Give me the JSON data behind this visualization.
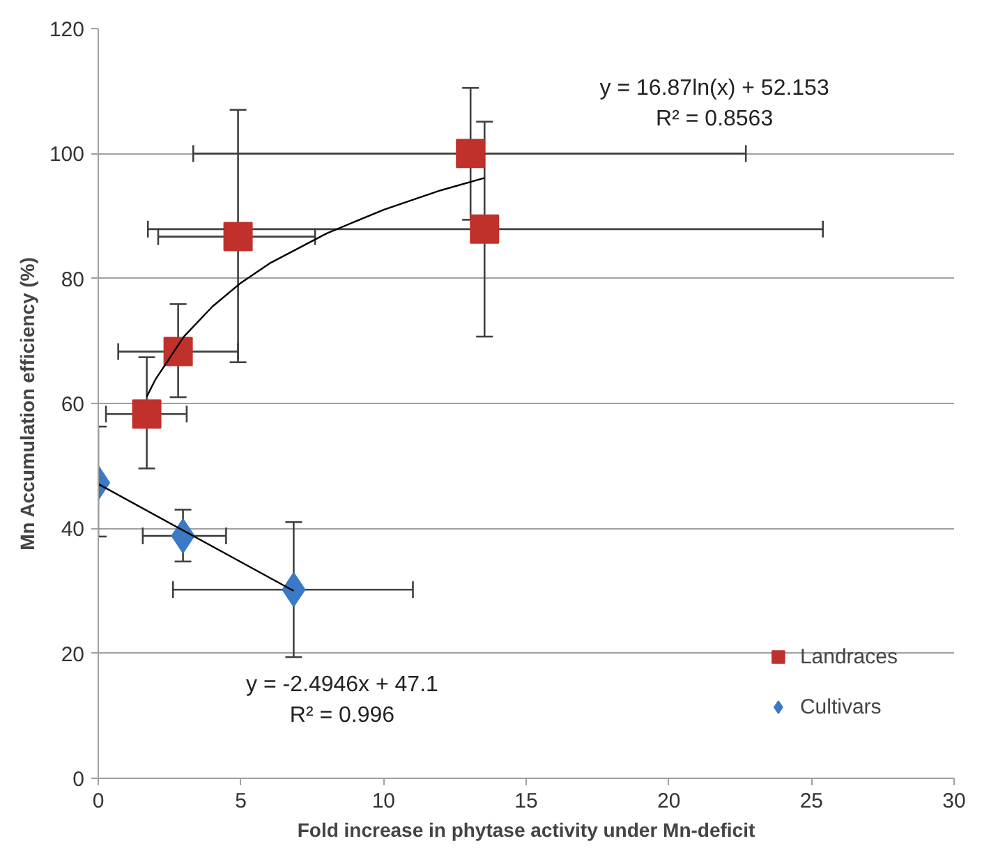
{
  "chart_data": {
    "type": "scatter",
    "xlabel": "Fold increase in phytase activity under Mn-deficit",
    "ylabel": "Mn Accumulation efficiency (%)",
    "xlim": [
      0,
      30
    ],
    "xticks": [
      0,
      5,
      10,
      15,
      20,
      25,
      30
    ],
    "ylim": [
      0,
      120
    ],
    "yticks": [
      0,
      20,
      40,
      60,
      80,
      100,
      120
    ],
    "grid": "y",
    "legend": "bottom right",
    "series": [
      {
        "name": "Landraces",
        "color": "#c0312b",
        "marker": "square",
        "x": [
          1.7,
          2.8,
          4.9,
          13.05,
          13.54
        ],
        "values": [
          58.3,
          68.3,
          86.7,
          100,
          87.9
        ],
        "errors": [
          [
            49.6,
            67.4
          ],
          [
            61.0,
            75.9
          ],
          [
            66.6,
            107
          ],
          [
            89.4,
            110.5
          ],
          [
            70.7,
            105.1
          ]
        ],
        "xerrors": [
          [
            0.27,
            3.1
          ],
          [
            0.7,
            4.9
          ],
          [
            2.1,
            7.6
          ],
          [
            3.33,
            22.7
          ],
          [
            1.74,
            25.4
          ]
        ]
      },
      {
        "name": "Cultivars",
        "color": "#3a7ac4",
        "marker": "diamond",
        "x": [
          0,
          2.97,
          6.85
        ],
        "values": [
          47.3,
          38.8,
          30.2
        ],
        "errors": [
          [
            38.7,
            56.3
          ],
          [
            34.7,
            43
          ],
          [
            19.4,
            41.0
          ]
        ],
        "xerrors": [
          null,
          [
            1.56,
            4.48
          ],
          [
            2.62,
            11.03
          ]
        ]
      },
      {
        "type": "line",
        "color": "#000000",
        "marker": "none",
        "x": [
          1.7,
          2,
          3,
          4,
          5,
          6,
          8,
          10,
          12,
          13.54
        ],
        "values": [
          61.1,
          63.8,
          70.7,
          75.5,
          79.3,
          82.4,
          87.2,
          91.0,
          94.1,
          96.1
        ]
      },
      {
        "type": "line",
        "color": "#000000",
        "marker": "none",
        "x": [
          0,
          6.85
        ],
        "values": [
          47.1,
          30.0
        ]
      }
    ],
    "annotations": [
      "y = 16.87ln(x) + 52.153\nR² = 0.8563",
      "y = -2.4946x + 47.1\nR² = 0.996"
    ]
  }
}
